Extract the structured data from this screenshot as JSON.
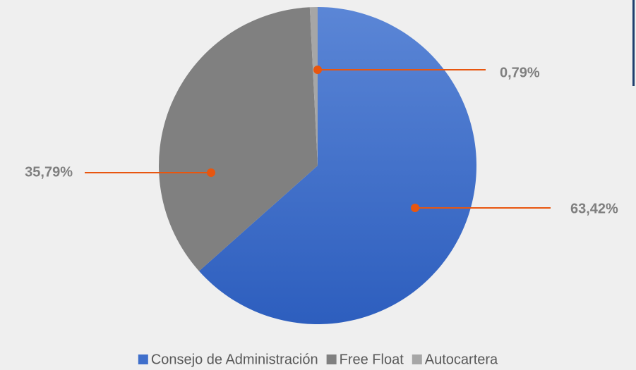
{
  "chart_data": {
    "type": "pie",
    "categories": [
      "Consejo de Administración",
      "Free Float",
      "Autocartera"
    ],
    "values": [
      63.42,
      35.79,
      0.79
    ],
    "value_labels": [
      "63,42%",
      "35,79%",
      "0,79%"
    ],
    "colors": [
      "#3f6fcb",
      "#808080",
      "#a6a6a6"
    ],
    "legend": "bottom"
  }
}
